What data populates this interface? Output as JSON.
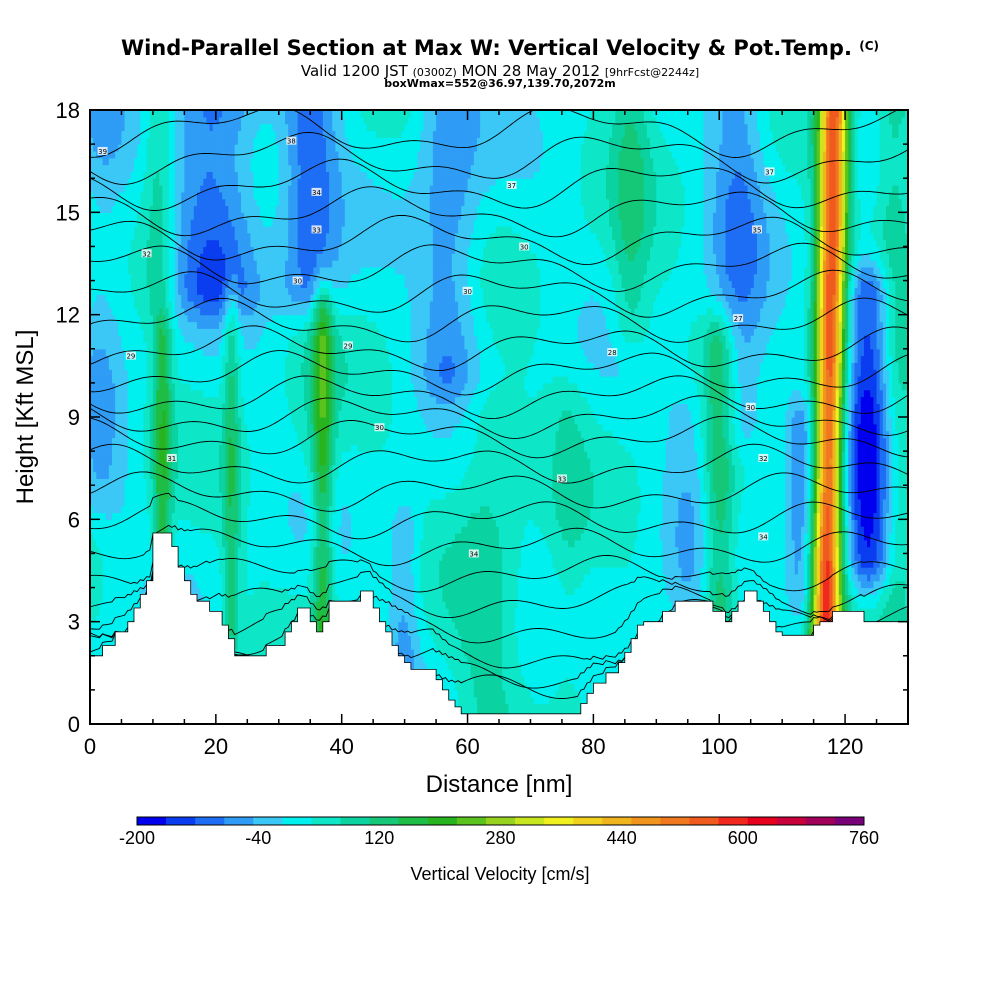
{
  "header": {
    "title": "Wind-Parallel Section at Max W: Vertical Velocity & Pot.Temp.",
    "title_mark": "(C)",
    "valid_prefix": "Valid 1200 JST",
    "valid_utc": "(0300Z)",
    "valid_date": "MON 28 May 2012",
    "forecast": "[9hrFcst@2244z]",
    "box_info": "boxWmax=552@36.97,139.70,2072m"
  },
  "chart_data": {
    "type": "heatmap",
    "xlabel": "Distance [nm]",
    "ylabel": "Height [Kft MSL]",
    "xlim": [
      0,
      130
    ],
    "ylim": [
      0,
      18
    ],
    "x_ticks": [
      0,
      20,
      40,
      60,
      80,
      100,
      120
    ],
    "y_ticks": [
      0,
      3,
      6,
      9,
      12,
      15,
      18
    ],
    "colorbar": {
      "label": "Vertical Velocity [cm/s]",
      "min": -200,
      "max": 760,
      "step": 40,
      "tick_labels": [
        "-200",
        "-40",
        "120",
        "280",
        "440",
        "600",
        "760"
      ],
      "colors": [
        "#0000ee",
        "#0a3cf0",
        "#1e6ef5",
        "#2f9cf6",
        "#3cc8f6",
        "#00f0f0",
        "#0ee6c8",
        "#0ad2a0",
        "#14c878",
        "#1ebe46",
        "#28b41e",
        "#5ac31e",
        "#96d21e",
        "#c8e61e",
        "#f0f01e",
        "#f0d21e",
        "#f0b41e",
        "#f0961e",
        "#f0781e",
        "#f05a1e",
        "#f0281e",
        "#e6001e",
        "#c8003c",
        "#a0005a",
        "#780078"
      ]
    },
    "terrain": [
      [
        0,
        2.0
      ],
      [
        2,
        2.0
      ],
      [
        2,
        2.3
      ],
      [
        4,
        2.3
      ],
      [
        4,
        2.7
      ],
      [
        6,
        2.7
      ],
      [
        6,
        3.0
      ],
      [
        7,
        3.0
      ],
      [
        7,
        3.4
      ],
      [
        8,
        3.4
      ],
      [
        8,
        3.8
      ],
      [
        9,
        3.8
      ],
      [
        9,
        4.2
      ],
      [
        10,
        4.2
      ],
      [
        10,
        5.6
      ],
      [
        13,
        5.6
      ],
      [
        13,
        5.2
      ],
      [
        14,
        5.2
      ],
      [
        14,
        4.6
      ],
      [
        15,
        4.6
      ],
      [
        15,
        4.2
      ],
      [
        16,
        4.2
      ],
      [
        16,
        3.8
      ],
      [
        17,
        3.8
      ],
      [
        17,
        3.6
      ],
      [
        19,
        3.6
      ],
      [
        19,
        3.3
      ],
      [
        21,
        3.3
      ],
      [
        21,
        2.9
      ],
      [
        22,
        2.9
      ],
      [
        22,
        2.5
      ],
      [
        23,
        2.5
      ],
      [
        23,
        2.0
      ],
      [
        28,
        2.0
      ],
      [
        28,
        2.3
      ],
      [
        31,
        2.3
      ],
      [
        31,
        2.7
      ],
      [
        32,
        2.7
      ],
      [
        32,
        3.0
      ],
      [
        33,
        3.0
      ],
      [
        33,
        3.4
      ],
      [
        35,
        3.4
      ],
      [
        35,
        3.0
      ],
      [
        36,
        3.0
      ],
      [
        36,
        2.7
      ],
      [
        37,
        2.7
      ],
      [
        37,
        3.0
      ],
      [
        38,
        3.0
      ],
      [
        38,
        3.6
      ],
      [
        43,
        3.6
      ],
      [
        43,
        3.9
      ],
      [
        45,
        3.9
      ],
      [
        45,
        3.4
      ],
      [
        46,
        3.4
      ],
      [
        46,
        3.0
      ],
      [
        47,
        3.0
      ],
      [
        47,
        2.7
      ],
      [
        48,
        2.7
      ],
      [
        48,
        2.3
      ],
      [
        49,
        2.3
      ],
      [
        49,
        2.0
      ],
      [
        50,
        2.0
      ],
      [
        50,
        1.8
      ],
      [
        51,
        1.8
      ],
      [
        51,
        1.6
      ],
      [
        55,
        1.6
      ],
      [
        55,
        1.3
      ],
      [
        56,
        1.3
      ],
      [
        56,
        1.0
      ],
      [
        57,
        1.0
      ],
      [
        57,
        0.7
      ],
      [
        58,
        0.7
      ],
      [
        58,
        0.5
      ],
      [
        59,
        0.5
      ],
      [
        59,
        0.3
      ],
      [
        78,
        0.3
      ],
      [
        78,
        0.6
      ],
      [
        79,
        0.6
      ],
      [
        79,
        0.9
      ],
      [
        80,
        0.9
      ],
      [
        80,
        1.2
      ],
      [
        82,
        1.2
      ],
      [
        82,
        1.5
      ],
      [
        84,
        1.5
      ],
      [
        84,
        1.8
      ],
      [
        85,
        1.8
      ],
      [
        85,
        2.1
      ],
      [
        86,
        2.1
      ],
      [
        86,
        2.5
      ],
      [
        87,
        2.5
      ],
      [
        87,
        2.9
      ],
      [
        88,
        2.9
      ],
      [
        88,
        3.0
      ],
      [
        91,
        3.0
      ],
      [
        91,
        3.3
      ],
      [
        93,
        3.3
      ],
      [
        93,
        3.6
      ],
      [
        99,
        3.6
      ],
      [
        99,
        3.3
      ],
      [
        101,
        3.3
      ],
      [
        101,
        3.0
      ],
      [
        102,
        3.0
      ],
      [
        102,
        3.3
      ],
      [
        103,
        3.3
      ],
      [
        103,
        3.6
      ],
      [
        104,
        3.6
      ],
      [
        104,
        3.9
      ],
      [
        106,
        3.9
      ],
      [
        106,
        3.6
      ],
      [
        107,
        3.6
      ],
      [
        107,
        3.3
      ],
      [
        108,
        3.3
      ],
      [
        108,
        3.0
      ],
      [
        109,
        3.0
      ],
      [
        109,
        2.7
      ],
      [
        110,
        2.7
      ],
      [
        110,
        2.6
      ],
      [
        115,
        2.6
      ],
      [
        115,
        2.9
      ],
      [
        116,
        2.9
      ],
      [
        116,
        3.0
      ],
      [
        118,
        3.0
      ],
      [
        118,
        3.3
      ],
      [
        123,
        3.3
      ],
      [
        123,
        3.0
      ],
      [
        130,
        3.0
      ]
    ],
    "features": [
      {
        "x": 117,
        "z0": 3.0,
        "z1": 18,
        "w": 2.3,
        "tilt": 0.08,
        "v": 560
      },
      {
        "x": 124,
        "z0": 5.0,
        "z1": 12.5,
        "w": 4.0,
        "tilt": 0.0,
        "v": -200
      },
      {
        "x": 113,
        "z0": 4.0,
        "z1": 8.5,
        "w": 2.5,
        "tilt": 0.0,
        "v": -110
      },
      {
        "x": 37,
        "z0": 3.0,
        "z1": 12,
        "w": 1.6,
        "tilt": 0.0,
        "v": 160
      },
      {
        "x": 35,
        "z0": 13,
        "z1": 18,
        "w": 4.5,
        "tilt": 0.0,
        "v": -130
      },
      {
        "x": 36,
        "z0": 8,
        "z1": 11,
        "w": 3.5,
        "tilt": 0.0,
        "v": 40
      },
      {
        "x": 11.5,
        "z0": 5.6,
        "z1": 11,
        "w": 1.5,
        "tilt": 0.0,
        "v": 150
      },
      {
        "x": 11,
        "z0": 13,
        "z1": 18,
        "w": 2.5,
        "tilt": 0.0,
        "v": 90
      },
      {
        "x": 22.5,
        "z0": 3.0,
        "z1": 12,
        "w": 1.3,
        "tilt": 0.0,
        "v": 110
      },
      {
        "x": 100,
        "z0": 3.6,
        "z1": 11,
        "w": 2.6,
        "tilt": 0.0,
        "v": 140
      },
      {
        "x": 103,
        "z0": 9,
        "z1": 18,
        "w": 4.5,
        "tilt": 0.0,
        "v": -100
      },
      {
        "x": 20,
        "z0": 13,
        "z1": 18,
        "w": 7,
        "tilt": 0.0,
        "v": -140
      },
      {
        "x": 57,
        "z0": 10.5,
        "z1": 18,
        "w": 5,
        "tilt": 0.0,
        "v": -100
      },
      {
        "x": 50,
        "z0": 1.5,
        "z1": 5.5,
        "w": 2.5,
        "tilt": 0.0,
        "v": -80
      },
      {
        "x": 63,
        "z0": 0.3,
        "z1": 9,
        "w": 5,
        "tilt": 0.0,
        "v": 60
      },
      {
        "x": 76,
        "z0": 0.3,
        "z1": 9,
        "w": 3,
        "tilt": 0.0,
        "v": 40
      },
      {
        "x": 2,
        "z0": 7,
        "z1": 18,
        "w": 4,
        "tilt": 0.0,
        "v": -60
      },
      {
        "x": 86,
        "z0": 12,
        "z1": 18,
        "w": 3,
        "tilt": 0.0,
        "v": 80
      },
      {
        "x": 95,
        "z0": 3,
        "z1": 9,
        "w": 4,
        "tilt": 0.0,
        "v": -50
      },
      {
        "x": 128,
        "z0": 3,
        "z1": 18,
        "w": 3,
        "tilt": 0.0,
        "v": 90
      }
    ],
    "isentropes": {
      "base_heights": [
        0.4,
        1.2,
        2.0,
        2.8,
        3.6,
        4.4,
        5.2,
        6.0,
        6.8,
        7.6,
        8.4,
        9.0,
        9.6,
        10.3,
        11.0,
        11.8,
        12.6,
        13.4,
        14.2,
        15.0,
        15.8,
        16.6,
        17.4
      ],
      "labels": [
        {
          "text": "34",
          "x": 61,
          "z": 5.0
        },
        {
          "text": "34",
          "x": 107,
          "z": 5.5
        },
        {
          "text": "33",
          "x": 75,
          "z": 7.2
        },
        {
          "text": "32",
          "x": 107,
          "z": 7.8
        },
        {
          "text": "31",
          "x": 13,
          "z": 7.8
        },
        {
          "text": "30",
          "x": 46,
          "z": 8.7
        },
        {
          "text": "30",
          "x": 105,
          "z": 9.3
        },
        {
          "text": "29",
          "x": 41,
          "z": 11.1
        },
        {
          "text": "29",
          "x": 6.5,
          "z": 10.8
        },
        {
          "text": "28",
          "x": 83,
          "z": 10.9
        },
        {
          "text": "27",
          "x": 103,
          "z": 11.9
        },
        {
          "text": "30",
          "x": 60,
          "z": 12.7
        },
        {
          "text": "30",
          "x": 33,
          "z": 13.0
        },
        {
          "text": "32",
          "x": 9,
          "z": 13.8
        },
        {
          "text": "30",
          "x": 69,
          "z": 14.0
        },
        {
          "text": "33",
          "x": 36,
          "z": 14.5
        },
        {
          "text": "35",
          "x": 106,
          "z": 14.5
        },
        {
          "text": "34",
          "x": 36,
          "z": 15.6
        },
        {
          "text": "37",
          "x": 67,
          "z": 15.8
        },
        {
          "text": "37",
          "x": 108,
          "z": 16.2
        },
        {
          "text": "38",
          "x": 32,
          "z": 17.1
        },
        {
          "text": "39",
          "x": 2,
          "z": 16.8
        }
      ]
    }
  }
}
